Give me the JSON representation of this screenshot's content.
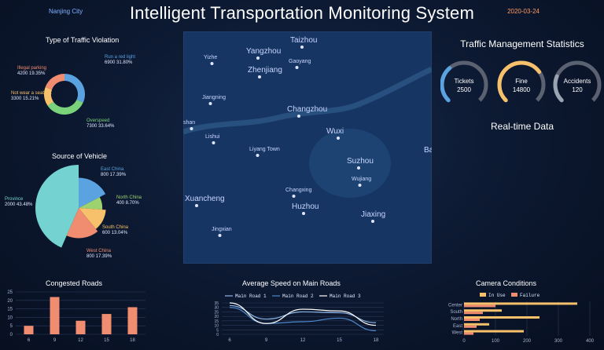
{
  "header": {
    "city": "Nanjing City",
    "title": "Intelligent Transportation Monitoring System",
    "date": "2020-03-24"
  },
  "violation": {
    "title": "Type of Traffic Violation",
    "items": [
      {
        "name": "Illegal parking",
        "value": 4200,
        "pct": "19.35%",
        "color": "#f08c6f"
      },
      {
        "name": "Run a red light",
        "value": 6900,
        "pct": "31.80%",
        "color": "#5aa2e0"
      },
      {
        "name": "Not wear a seatbelt",
        "value": 3300,
        "pct": "15.21%",
        "color": "#f7c16b"
      },
      {
        "name": "Overspeed",
        "value": 7300,
        "pct": "33.64%",
        "color": "#7ad27a"
      }
    ]
  },
  "vehicle": {
    "title": "Source of Vehicle",
    "items": [
      {
        "name": "East China",
        "value": 800,
        "pct": "17.39%",
        "color": "#5aa2e0"
      },
      {
        "name": "North China",
        "value": 400,
        "pct": "8.70%",
        "color": "#9cd36f"
      },
      {
        "name": "South China",
        "value": 600,
        "pct": "13.04%",
        "color": "#f7c16b"
      },
      {
        "name": "West China",
        "value": 800,
        "pct": "17.39%",
        "color": "#f08c6f"
      },
      {
        "name": "Province",
        "value": 2000,
        "pct": "43.48%",
        "color": "#74d2d0"
      }
    ]
  },
  "map": {
    "cities": [
      {
        "name": "Taizhou"
      },
      {
        "name": "Yangzhou"
      },
      {
        "name": "Gaoyang"
      },
      {
        "name": "Zhenjiang"
      },
      {
        "name": "Yizhe"
      },
      {
        "name": "Jiangning"
      },
      {
        "name": "Changzhou"
      },
      {
        "name": "shan"
      },
      {
        "name": "Wuxi"
      },
      {
        "name": "Lishui"
      },
      {
        "name": "Liyang Town"
      },
      {
        "name": "Suzhou"
      },
      {
        "name": "Wujiang"
      },
      {
        "name": "Changxing"
      },
      {
        "name": "Huzhou"
      },
      {
        "name": "Jiaxing"
      },
      {
        "name": "Xuancheng"
      },
      {
        "name": "Jingxian"
      },
      {
        "name": "Ba"
      }
    ]
  },
  "stats": {
    "title": "Traffic Management Statistics",
    "gauges": [
      {
        "label": "Tickets",
        "value": "2500",
        "color": "#5aa2e0",
        "fraction": 0.35
      },
      {
        "label": "Fine",
        "value": "14800",
        "color": "#f7c16b",
        "fraction": 0.7
      },
      {
        "label": "Accidents",
        "value": "120",
        "color": "#9aa3b2",
        "fraction": 0.25
      }
    ],
    "realtime_title": "Real-time Data"
  },
  "congested": {
    "title": "Congested Roads",
    "chart_data": {
      "type": "bar",
      "categories": [
        "6",
        "9",
        "12",
        "15",
        "18"
      ],
      "values": [
        5,
        22,
        8,
        12,
        16
      ],
      "ylim": [
        0,
        25
      ],
      "yticks": [
        "0",
        "5",
        "10",
        "15",
        "20",
        "25"
      ],
      "color": "#f08c6f"
    }
  },
  "speed": {
    "title": "Average Speed on Main Roads",
    "chart_data": {
      "type": "line",
      "x": [
        "6",
        "9",
        "12",
        "15",
        "18"
      ],
      "yticks": [
        "0",
        "5",
        "10",
        "15",
        "20",
        "25",
        "30",
        "35"
      ],
      "ylim": [
        0,
        35
      ],
      "series": [
        {
          "name": "Main Road 1",
          "values": [
            32,
            17,
            25,
            24,
            13
          ],
          "color": "#8fb6e8"
        },
        {
          "name": "Main Road 2",
          "values": [
            30,
            12,
            14,
            18,
            4
          ],
          "color": "#4e87c9"
        },
        {
          "name": "Main Road 3",
          "values": [
            35,
            12,
            28,
            26,
            10
          ],
          "color": "#ffffff"
        }
      ]
    }
  },
  "camera": {
    "title": "Camera Conditions",
    "chart_data": {
      "type": "bar",
      "categories": [
        "Center",
        "South",
        "North",
        "East",
        "West"
      ],
      "xticks": [
        "0",
        "100",
        "200",
        "300",
        "400"
      ],
      "xlim": [
        0,
        400
      ],
      "series": [
        {
          "name": "In Use",
          "values": [
            360,
            120,
            240,
            80,
            190
          ],
          "color": "#f7c16b"
        },
        {
          "name": "Failure",
          "values": [
            100,
            60,
            50,
            40,
            30
          ],
          "color": "#f08c6f"
        }
      ]
    }
  }
}
